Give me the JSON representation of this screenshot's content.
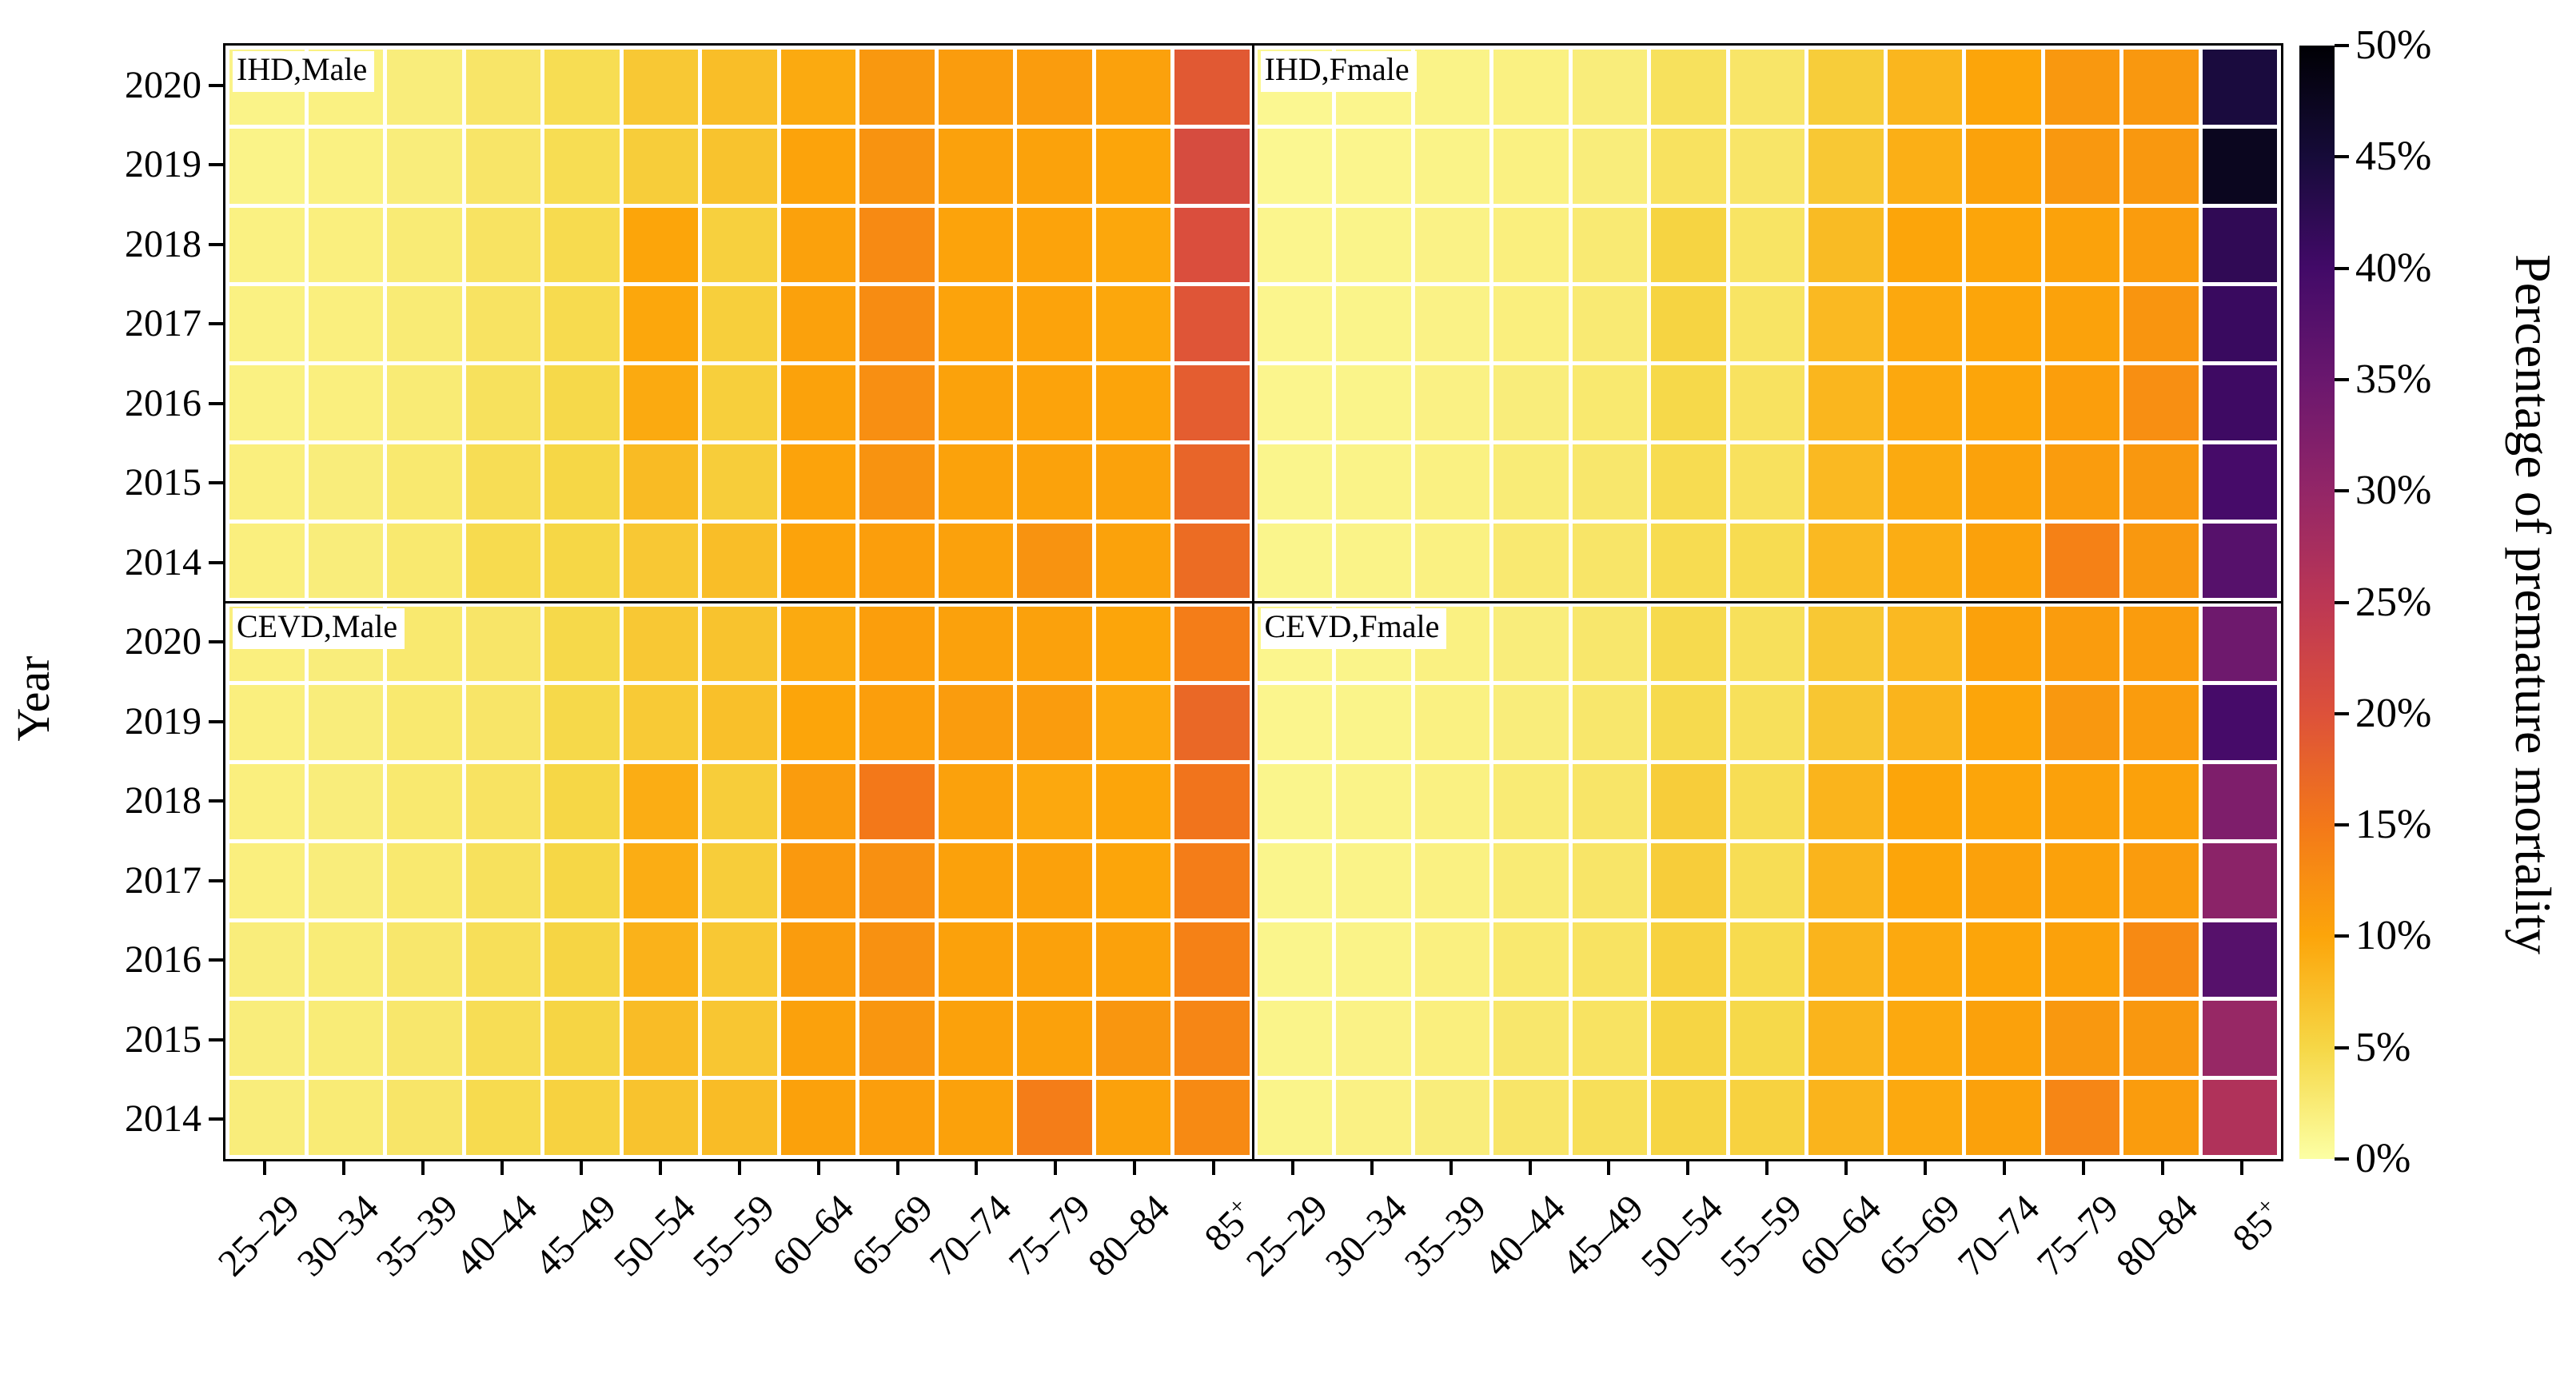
{
  "ylabel": "Year",
  "colorbar": {
    "title": "Percentage of premature mortality",
    "tick_labels": [
      "0%",
      "5%",
      "10%",
      "15%",
      "20%",
      "25%",
      "30%",
      "35%",
      "40%",
      "45%",
      "50%"
    ]
  },
  "chart_data": {
    "type": "heatmap",
    "title": "",
    "xlabel": "",
    "ylabel": "Year",
    "unit": "%",
    "value_range": [
      0,
      50
    ],
    "grid_gap_color": "#ffffff",
    "frame_color": "#000000",
    "colormap": "inferno_r",
    "colormap_stops": [
      [
        0.0,
        0,
        0,
        4
      ],
      [
        0.1,
        22,
        11,
        57
      ],
      [
        0.2,
        66,
        10,
        104
      ],
      [
        0.3,
        106,
        23,
        110
      ],
      [
        0.4,
        147,
        38,
        103
      ],
      [
        0.5,
        188,
        55,
        84
      ],
      [
        0.6,
        221,
        81,
        58
      ],
      [
        0.7,
        243,
        120,
        25
      ],
      [
        0.8,
        252,
        165,
        10
      ],
      [
        0.9,
        246,
        215,
        70
      ],
      [
        1.0,
        252,
        255,
        164
      ]
    ],
    "x_categories": [
      "25–29",
      "30–34",
      "35–39",
      "40–44",
      "45–49",
      "50–54",
      "55–59",
      "60–64",
      "65–69",
      "70–74",
      "75–79",
      "80–84",
      "85+"
    ],
    "y_categories": [
      "2020",
      "2019",
      "2018",
      "2017",
      "2016",
      "2015",
      "2014"
    ],
    "panels": [
      {
        "label": "IHD,Male",
        "position": "top-left",
        "values": [
          [
            1.5,
            1.8,
            2.2,
            3.2,
            4.3,
            6.5,
            7.5,
            9.5,
            11.5,
            11.0,
            11.0,
            10.5,
            19.0
          ],
          [
            1.5,
            1.8,
            2.2,
            3.2,
            4.3,
            6.0,
            7.0,
            10.2,
            12.0,
            10.5,
            10.3,
            10.0,
            21.0
          ],
          [
            1.8,
            2.0,
            2.5,
            3.5,
            4.5,
            10.0,
            5.7,
            10.5,
            13.0,
            10.2,
            10.2,
            9.8,
            20.5
          ],
          [
            1.8,
            2.0,
            2.5,
            3.5,
            4.5,
            9.8,
            5.8,
            10.5,
            12.8,
            10.2,
            10.2,
            9.8,
            19.5
          ],
          [
            1.8,
            2.0,
            2.5,
            3.8,
            4.8,
            9.5,
            5.8,
            10.3,
            12.5,
            10.3,
            10.2,
            10.1,
            18.5
          ],
          [
            2.0,
            2.2,
            2.8,
            4.2,
            5.0,
            7.8,
            6.0,
            10.2,
            12.0,
            10.3,
            10.3,
            10.3,
            17.5
          ],
          [
            2.0,
            2.2,
            2.8,
            4.5,
            5.0,
            6.5,
            7.5,
            10.2,
            10.8,
            10.5,
            12.0,
            10.3,
            16.5
          ]
        ]
      },
      {
        "label": "IHD,Fmale",
        "position": "top-right",
        "values": [
          [
            1.0,
            1.2,
            1.5,
            1.8,
            2.2,
            3.8,
            3.2,
            6.0,
            8.3,
            10.0,
            11.5,
            11.5,
            44.5
          ],
          [
            1.0,
            1.2,
            1.5,
            1.8,
            2.2,
            3.6,
            3.2,
            6.5,
            9.0,
            10.3,
            11.5,
            11.5,
            47.5
          ],
          [
            1.2,
            1.4,
            1.6,
            2.0,
            2.6,
            5.3,
            3.4,
            7.8,
            10.0,
            10.0,
            10.3,
            11.0,
            42.0
          ],
          [
            1.2,
            1.4,
            1.6,
            2.0,
            2.6,
            5.3,
            3.4,
            8.0,
            9.7,
            10.0,
            10.3,
            11.8,
            41.0
          ],
          [
            1.2,
            1.4,
            1.7,
            2.2,
            2.8,
            4.8,
            3.6,
            8.3,
            9.7,
            10.0,
            10.8,
            12.5,
            40.5
          ],
          [
            1.3,
            1.5,
            1.8,
            2.4,
            3.0,
            4.4,
            3.7,
            8.0,
            9.5,
            10.3,
            11.0,
            11.5,
            39.5
          ],
          [
            1.3,
            1.5,
            1.8,
            2.7,
            3.2,
            4.4,
            4.4,
            8.0,
            9.2,
            10.4,
            14.0,
            11.5,
            37.5
          ]
        ]
      },
      {
        "label": "CEVD,Male",
        "position": "bottom-left",
        "values": [
          [
            2.0,
            2.2,
            2.8,
            3.2,
            4.8,
            6.5,
            7.0,
            9.5,
            10.8,
            10.5,
            10.5,
            10.0,
            14.5
          ],
          [
            2.0,
            2.2,
            2.8,
            3.2,
            4.8,
            6.3,
            7.3,
            10.0,
            10.8,
            11.0,
            11.0,
            9.7,
            17.0
          ],
          [
            2.0,
            2.2,
            2.8,
            3.5,
            5.0,
            9.2,
            6.0,
            11.0,
            15.0,
            10.5,
            9.7,
            10.0,
            15.5
          ],
          [
            2.0,
            2.2,
            2.8,
            3.8,
            5.0,
            9.2,
            6.0,
            11.3,
            12.3,
            10.4,
            10.4,
            10.0,
            14.5
          ],
          [
            2.2,
            2.4,
            3.0,
            4.0,
            5.2,
            8.7,
            6.5,
            11.0,
            12.2,
            10.4,
            10.4,
            10.4,
            14.0
          ],
          [
            2.2,
            2.4,
            3.0,
            4.2,
            5.2,
            7.7,
            6.7,
            10.5,
            11.7,
            10.4,
            10.4,
            11.7,
            13.5
          ],
          [
            2.2,
            2.5,
            3.2,
            4.5,
            5.5,
            7.0,
            7.7,
            10.4,
            10.8,
            10.4,
            14.5,
            10.4,
            13.0
          ]
        ]
      },
      {
        "label": "CEVD,Fmale",
        "position": "bottom-right",
        "values": [
          [
            1.2,
            1.4,
            1.8,
            2.2,
            3.0,
            4.6,
            3.9,
            6.5,
            8.0,
            10.4,
            11.0,
            11.0,
            34.5
          ],
          [
            1.2,
            1.4,
            1.8,
            2.2,
            3.0,
            4.6,
            3.9,
            6.7,
            8.5,
            10.0,
            11.5,
            11.0,
            39.5
          ],
          [
            1.3,
            1.5,
            1.8,
            2.5,
            3.2,
            6.0,
            4.2,
            8.5,
            10.0,
            10.0,
            10.4,
            10.4,
            32.5
          ],
          [
            1.3,
            1.5,
            1.8,
            2.5,
            3.2,
            6.0,
            4.2,
            8.5,
            10.0,
            10.4,
            10.4,
            11.0,
            31.0
          ],
          [
            1.3,
            1.5,
            1.9,
            2.8,
            3.5,
            5.5,
            4.5,
            8.5,
            9.6,
            10.0,
            10.4,
            13.0,
            37.5
          ],
          [
            1.4,
            1.6,
            2.0,
            3.0,
            3.5,
            5.2,
            4.8,
            8.5,
            9.6,
            10.4,
            11.5,
            11.5,
            29.5
          ],
          [
            1.4,
            1.7,
            2.2,
            3.2,
            4.0,
            5.2,
            5.5,
            8.5,
            9.6,
            10.4,
            13.5,
            11.0,
            26.5
          ]
        ]
      }
    ]
  }
}
